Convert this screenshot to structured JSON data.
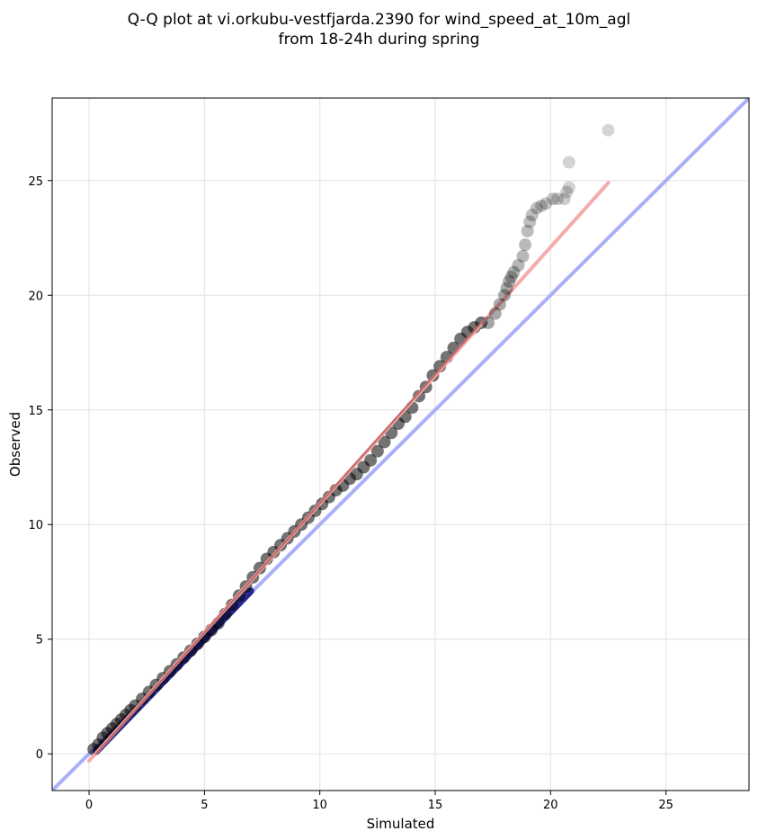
{
  "title_line1": "Q-Q plot at vi.orkubu-vestfjarda.2390 for wind_speed_at_10m_agl",
  "title_line2": "from 18-24h during spring",
  "chart_data": {
    "type": "scatter",
    "xlabel": "Simulated",
    "ylabel": "Observed",
    "xlim": [
      -1.6,
      28.6
    ],
    "ylim": [
      -1.6,
      28.6
    ],
    "xticks": [
      0,
      5,
      10,
      15,
      20,
      25
    ],
    "yticks": [
      0,
      5,
      10,
      15,
      20,
      25
    ],
    "grid": true,
    "colors": {
      "points": "#000000",
      "identity_line": "#aab0f8",
      "fit_line": "#f4a7a7",
      "underlay_line": "#1a1a8a"
    },
    "identity_line": {
      "x": [
        -1.6,
        28.6
      ],
      "y": [
        -1.6,
        28.6
      ]
    },
    "fit_line": {
      "x": [
        0.0,
        22.5
      ],
      "y": [
        -0.3,
        24.9
      ]
    },
    "underlay_line": {
      "x": [
        0.3,
        7.0
      ],
      "y": [
        0.1,
        7.1
      ]
    },
    "points_dense": {
      "x": [
        0.2,
        0.4,
        0.6,
        0.8,
        1.0,
        1.2,
        1.4,
        1.6,
        1.8,
        2.0,
        2.3,
        2.6,
        2.9,
        3.2,
        3.5,
        3.8,
        4.1,
        4.4,
        4.7,
        5.0,
        5.3,
        5.6,
        5.9,
        6.2,
        6.5,
        6.8,
        7.1,
        7.4,
        7.7,
        8.0,
        8.3,
        8.6,
        8.9,
        9.2,
        9.5,
        9.8,
        10.1,
        10.4,
        10.7,
        11.0,
        11.3,
        11.6,
        11.9,
        12.2,
        12.5,
        12.8,
        13.1,
        13.4,
        13.7,
        14.0,
        14.3,
        14.6,
        14.9,
        15.2,
        15.5,
        15.8,
        16.1,
        16.4,
        16.7,
        17.0
      ],
      "y": [
        0.2,
        0.4,
        0.7,
        0.9,
        1.1,
        1.3,
        1.5,
        1.7,
        1.9,
        2.1,
        2.4,
        2.7,
        3.0,
        3.3,
        3.6,
        3.9,
        4.2,
        4.5,
        4.8,
        5.1,
        5.4,
        5.7,
        6.1,
        6.5,
        6.9,
        7.3,
        7.7,
        8.1,
        8.5,
        8.8,
        9.1,
        9.4,
        9.7,
        10.0,
        10.3,
        10.6,
        10.9,
        11.2,
        11.5,
        11.7,
        12.0,
        12.2,
        12.5,
        12.8,
        13.2,
        13.6,
        14.0,
        14.4,
        14.7,
        15.1,
        15.6,
        16.0,
        16.5,
        16.9,
        17.3,
        17.7,
        18.1,
        18.4,
        18.6,
        18.8
      ]
    },
    "points_tail": {
      "x": [
        17.3,
        17.6,
        17.8,
        18.0,
        18.1,
        18.2,
        18.3,
        18.4,
        18.6,
        18.8,
        18.9,
        19.0,
        19.1,
        19.2,
        19.4,
        19.6,
        19.8,
        20.1,
        20.3,
        20.6,
        20.7,
        20.8,
        20.8,
        22.5
      ],
      "y": [
        18.8,
        19.2,
        19.6,
        20.0,
        20.3,
        20.6,
        20.8,
        21.0,
        21.3,
        21.7,
        22.2,
        22.8,
        23.2,
        23.5,
        23.8,
        23.9,
        24.0,
        24.2,
        24.2,
        24.2,
        24.5,
        24.7,
        25.8,
        27.2
      ]
    }
  }
}
